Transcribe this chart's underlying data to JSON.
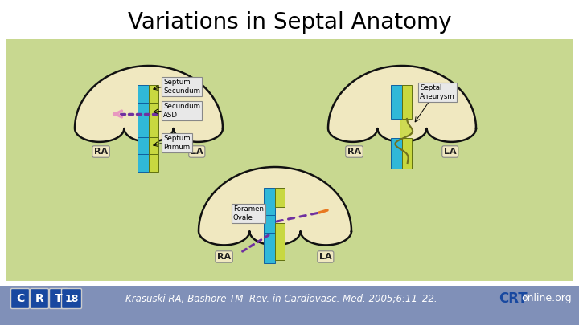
{
  "title": "Variations in Septal Anatomy",
  "title_fontsize": 20,
  "title_color": "#000000",
  "bg_color": "#ffffff",
  "content_bg": "#c8d890",
  "footer_bg": "#8090b8",
  "footer_text": "Krasuski RA, Bashore TM  Rev. in Cardiovasc. Med. 2005;6:11–22.",
  "footer_text_color": "#ffffff",
  "footer_fontsize": 8.5,
  "ra_label": "RA",
  "la_label": "LA",
  "fan_fill": "#f0e8c0",
  "fan_edge": "#111111",
  "cyan_color": "#30b8d8",
  "yellow_color": "#c8d840",
  "arrow_purple": "#7030a0",
  "arrow_pink": "#e898c0",
  "arrow_orange": "#e87820",
  "logo_blue": "#1848a0",
  "label_bg": "#e8e8e8"
}
